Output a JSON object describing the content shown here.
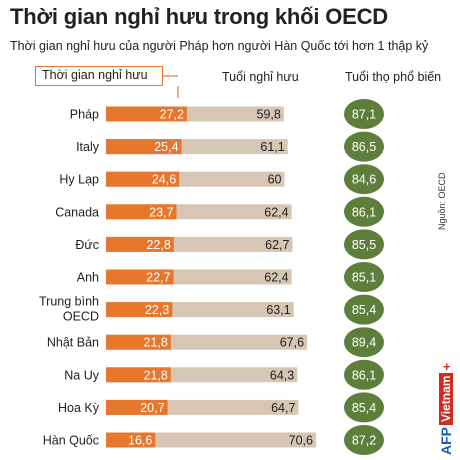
{
  "title": "Thời gian nghỉ hưu trong khối OECD",
  "subtitle": "Thời gian nghỉ hưu của người Pháp hơn người Hàn Quốc tới hơn 1 thập kỷ",
  "legend_label": "Thời gian nghỉ hưu",
  "col_retire_age": "Tuổi nghỉ hưu",
  "col_life_exp": "Tuổi thọ phổ biến",
  "source": "Nguồn: OECD",
  "logo": {
    "afp": "AFP",
    "brand": "Vietnam",
    "plus": "+"
  },
  "colors": {
    "retire_years": "#e8772e",
    "retire_age_bar": "#d8c6b4",
    "life_circle": "#5e7f3c"
  },
  "chart_data": {
    "type": "bar",
    "categories": [
      "Pháp",
      "Italy",
      "Hy Lạp",
      "Canada",
      "Đức",
      "Anh",
      "Trung bình OECD",
      "Nhật Bản",
      "Na Uy",
      "Hoa Kỳ",
      "Hàn Quốc"
    ],
    "series": [
      {
        "name": "Thời gian nghỉ hưu",
        "values": [
          27.2,
          25.4,
          24.6,
          23.7,
          22.8,
          22.7,
          22.3,
          21.8,
          21.8,
          20.7,
          16.6
        ],
        "labels": [
          "27,2",
          "25,4",
          "24,6",
          "23,7",
          "22,8",
          "22,7",
          "22,3",
          "21,8",
          "21,8",
          "20,7",
          "16,6"
        ]
      },
      {
        "name": "Tuổi nghỉ hưu",
        "values": [
          59.8,
          61.1,
          60,
          62.4,
          62.7,
          62.4,
          63.1,
          67.6,
          64.3,
          64.7,
          70.6
        ],
        "labels": [
          "59,8",
          "61,1",
          "60",
          "62,4",
          "62,7",
          "62,4",
          "63,1",
          "67,6",
          "64,3",
          "64,7",
          "70,6"
        ]
      },
      {
        "name": "Tuổi thọ phổ biến",
        "values": [
          87.1,
          86.5,
          84.6,
          86.1,
          85.5,
          85.1,
          85.4,
          89.4,
          86.1,
          85.4,
          87.2
        ],
        "labels": [
          "87,1",
          "86,5",
          "84,6",
          "86,1",
          "85,5",
          "85,1",
          "85,4",
          "89,4",
          "86,1",
          "85,4",
          "87,2"
        ]
      }
    ]
  }
}
